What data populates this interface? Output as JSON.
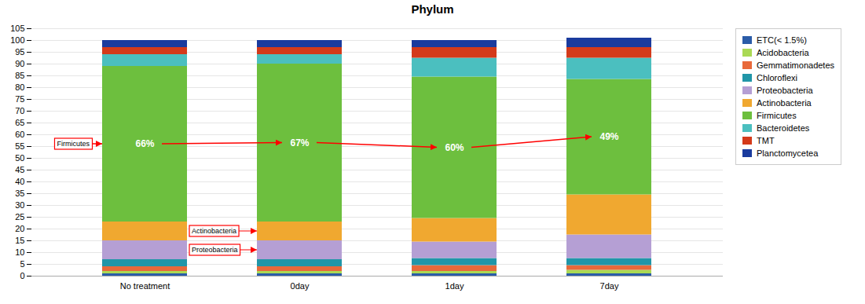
{
  "chart_data": {
    "type": "bar",
    "title": "Phylum",
    "stacked": true,
    "categories": [
      "No treatment",
      "0day",
      "1day",
      "7day"
    ],
    "series": [
      {
        "name": "ETC(< 1.5%)",
        "color": "#2b5ca8",
        "values": [
          1.0,
          1.0,
          1.0,
          1.0
        ]
      },
      {
        "name": "Acidobacteria",
        "color": "#aad954",
        "values": [
          1.0,
          1.0,
          1.0,
          1.5
        ]
      },
      {
        "name": "Gemmatimonadetes",
        "color": "#e8693a",
        "values": [
          2.0,
          2.0,
          2.5,
          2.0
        ]
      },
      {
        "name": "Chloroflexi",
        "color": "#2196a8",
        "values": [
          3.0,
          3.0,
          3.0,
          3.0
        ]
      },
      {
        "name": "Proteobacteria",
        "color": "#b59fd4",
        "values": [
          8.0,
          8.0,
          7.0,
          10.0
        ]
      },
      {
        "name": "Actinobacteria",
        "color": "#f0a830",
        "values": [
          8.0,
          8.0,
          10.0,
          17.0
        ]
      },
      {
        "name": "Firmicutes",
        "color": "#6dbf3e",
        "values": [
          66.0,
          67.0,
          60.0,
          49.0
        ],
        "value_labels": [
          "66%",
          "67%",
          "60%",
          "49%"
        ]
      },
      {
        "name": "Bacteroidetes",
        "color": "#4bbfbf",
        "values": [
          5.0,
          4.0,
          8.0,
          9.0
        ]
      },
      {
        "name": "TMT",
        "color": "#d43a1a",
        "values": [
          3.0,
          3.0,
          4.5,
          4.5
        ]
      },
      {
        "name": "Planctomycetea",
        "color": "#1a3b9e",
        "values": [
          3.0,
          3.0,
          3.0,
          4.0
        ]
      }
    ],
    "ylim": [
      0,
      105
    ],
    "yticks": [
      0,
      5,
      10,
      15,
      20,
      25,
      30,
      35,
      40,
      45,
      50,
      55,
      60,
      65,
      70,
      75,
      80,
      85,
      90,
      95,
      100,
      105
    ],
    "grid": true,
    "legend": "right",
    "annotations": [
      "Firmicutes",
      "Proteobacteria",
      "Actinobacteria"
    ]
  }
}
